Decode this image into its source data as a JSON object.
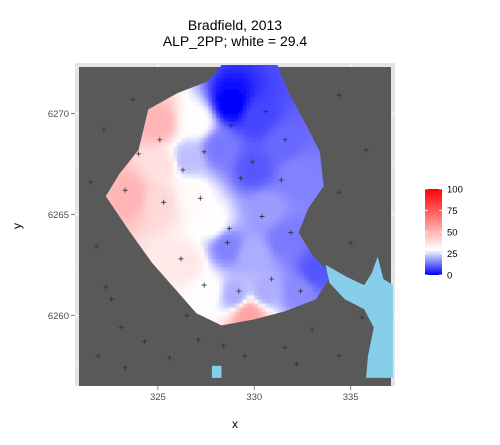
{
  "chart_data": {
    "type": "heatmap",
    "title_lines": [
      "Bradfield, 2013",
      "ALP_2PP; white = 29.4"
    ],
    "xlabel": "x",
    "ylabel": "y",
    "xlim": [
      320.7,
      337.3
    ],
    "ylim": [
      6256.5,
      6272.5
    ],
    "x_ticks": [
      325,
      330,
      335
    ],
    "y_ticks": [
      6260,
      6265,
      6270
    ],
    "grid": true,
    "legend_position": "right",
    "legend": {
      "ticks": [
        0,
        25,
        50,
        75,
        100
      ],
      "colors": {
        "low": "#0000ff",
        "mid": "#ffffff",
        "high": "#ff0000"
      },
      "midpoint_label": "white = 29.4"
    },
    "colors": {
      "panel_background": "#e5e5e5",
      "grid": "#ffffff",
      "outside_electorate": "#595959",
      "water": "#87ceeb",
      "polling_place_marker": "#333333"
    },
    "electorate_boundary_data_units": [
      [
        328.3,
        6272.4
      ],
      [
        331.2,
        6272.4
      ],
      [
        331.8,
        6271.0
      ],
      [
        332.6,
        6269.6
      ],
      [
        333.4,
        6268.1
      ],
      [
        333.6,
        6266.4
      ],
      [
        332.8,
        6265.3
      ],
      [
        332.3,
        6264.1
      ],
      [
        333.0,
        6263.0
      ],
      [
        334.0,
        6262.0
      ],
      [
        333.2,
        6260.8
      ],
      [
        331.6,
        6260.2
      ],
      [
        330.0,
        6259.8
      ],
      [
        328.3,
        6259.5
      ],
      [
        327.0,
        6260.1
      ],
      [
        325.9,
        6261.3
      ],
      [
        324.7,
        6262.6
      ],
      [
        323.5,
        6264.2
      ],
      [
        322.3,
        6265.9
      ],
      [
        323.0,
        6267.0
      ],
      [
        324.0,
        6268.2
      ],
      [
        324.5,
        6270.2
      ],
      [
        326.0,
        6271.0
      ],
      [
        327.6,
        6271.6
      ]
    ],
    "interpolated_points": [
      {
        "x": 328.8,
        "y": 6270.5,
        "v": 0
      },
      {
        "x": 330.2,
        "y": 6269.8,
        "v": 8
      },
      {
        "x": 331.5,
        "y": 6268.5,
        "v": 12
      },
      {
        "x": 332.2,
        "y": 6267.0,
        "v": 15
      },
      {
        "x": 330.0,
        "y": 6267.3,
        "v": 10
      },
      {
        "x": 328.2,
        "y": 6268.3,
        "v": 14
      },
      {
        "x": 327.0,
        "y": 6269.6,
        "v": 30
      },
      {
        "x": 326.5,
        "y": 6267.8,
        "v": 22
      },
      {
        "x": 325.0,
        "y": 6269.5,
        "v": 50
      },
      {
        "x": 325.2,
        "y": 6267.5,
        "v": 38
      },
      {
        "x": 323.5,
        "y": 6266.0,
        "v": 50
      },
      {
        "x": 325.2,
        "y": 6265.6,
        "v": 40
      },
      {
        "x": 326.7,
        "y": 6265.9,
        "v": 31
      },
      {
        "x": 327.8,
        "y": 6264.6,
        "v": 30
      },
      {
        "x": 328.6,
        "y": 6263.4,
        "v": 15
      },
      {
        "x": 330.6,
        "y": 6265.2,
        "v": 18
      },
      {
        "x": 331.6,
        "y": 6263.8,
        "v": 14
      },
      {
        "x": 329.9,
        "y": 6263.0,
        "v": 20
      },
      {
        "x": 326.4,
        "y": 6262.6,
        "v": 36
      },
      {
        "x": 327.6,
        "y": 6261.2,
        "v": 30
      },
      {
        "x": 329.0,
        "y": 6261.0,
        "v": 20
      },
      {
        "x": 330.6,
        "y": 6261.2,
        "v": 20
      },
      {
        "x": 332.3,
        "y": 6261.2,
        "v": 16
      },
      {
        "x": 333.2,
        "y": 6262.2,
        "v": 10
      },
      {
        "x": 329.7,
        "y": 6260.0,
        "v": 55
      }
    ],
    "polling_places": [
      {
        "x": 324.0,
        "y": 6268.0
      },
      {
        "x": 325.1,
        "y": 6268.7
      },
      {
        "x": 326.3,
        "y": 6267.2
      },
      {
        "x": 327.4,
        "y": 6268.1
      },
      {
        "x": 328.8,
        "y": 6269.4
      },
      {
        "x": 330.6,
        "y": 6270.1
      },
      {
        "x": 331.6,
        "y": 6268.7
      },
      {
        "x": 329.3,
        "y": 6266.8
      },
      {
        "x": 327.2,
        "y": 6265.8
      },
      {
        "x": 328.7,
        "y": 6264.3
      },
      {
        "x": 328.6,
        "y": 6263.6
      },
      {
        "x": 330.4,
        "y": 6264.9
      },
      {
        "x": 331.9,
        "y": 6264.1
      },
      {
        "x": 326.2,
        "y": 6262.8
      },
      {
        "x": 327.4,
        "y": 6261.5
      },
      {
        "x": 329.2,
        "y": 6261.2
      },
      {
        "x": 330.9,
        "y": 6261.8
      },
      {
        "x": 332.4,
        "y": 6261.2
      },
      {
        "x": 323.3,
        "y": 6266.2
      },
      {
        "x": 325.3,
        "y": 6265.6
      },
      {
        "x": 331.4,
        "y": 6266.7
      },
      {
        "x": 329.9,
        "y": 6267.6
      },
      {
        "x": 322.2,
        "y": 6269.2
      },
      {
        "x": 321.5,
        "y": 6266.6
      },
      {
        "x": 321.8,
        "y": 6263.4
      },
      {
        "x": 322.3,
        "y": 6261.4
      },
      {
        "x": 322.6,
        "y": 6260.8
      },
      {
        "x": 323.1,
        "y": 6259.4
      },
      {
        "x": 324.3,
        "y": 6258.7
      },
      {
        "x": 325.6,
        "y": 6257.9
      },
      {
        "x": 327.1,
        "y": 6258.8
      },
      {
        "x": 328.4,
        "y": 6258.5
      },
      {
        "x": 329.5,
        "y": 6258.0
      },
      {
        "x": 331.6,
        "y": 6258.4
      },
      {
        "x": 333.0,
        "y": 6259.3
      },
      {
        "x": 334.4,
        "y": 6258.0
      },
      {
        "x": 335.6,
        "y": 6259.9
      },
      {
        "x": 335.0,
        "y": 6263.6
      },
      {
        "x": 334.4,
        "y": 6266.1
      },
      {
        "x": 335.8,
        "y": 6268.2
      },
      {
        "x": 334.4,
        "y": 6270.9
      },
      {
        "x": 323.7,
        "y": 6270.7
      },
      {
        "x": 323.3,
        "y": 6257.4
      },
      {
        "x": 321.9,
        "y": 6258.0
      },
      {
        "x": 326.5,
        "y": 6260.0
      },
      {
        "x": 332.2,
        "y": 6257.6
      }
    ],
    "water_bodies_data_units": [
      [
        [
          333.7,
          6262.5
        ],
        [
          334.8,
          6261.9
        ],
        [
          335.7,
          6261.5
        ],
        [
          336.1,
          6262.1
        ],
        [
          336.4,
          6262.9
        ],
        [
          336.7,
          6261.8
        ],
        [
          337.2,
          6261.5
        ],
        [
          337.2,
          6256.9
        ],
        [
          335.8,
          6256.9
        ],
        [
          335.9,
          6258.0
        ],
        [
          336.2,
          6259.4
        ],
        [
          335.7,
          6260.3
        ],
        [
          334.7,
          6260.8
        ],
        [
          333.9,
          6261.6
        ]
      ],
      [
        [
          327.8,
          6257.5
        ],
        [
          328.3,
          6257.5
        ],
        [
          328.3,
          6256.9
        ],
        [
          327.8,
          6256.9
        ]
      ]
    ]
  }
}
